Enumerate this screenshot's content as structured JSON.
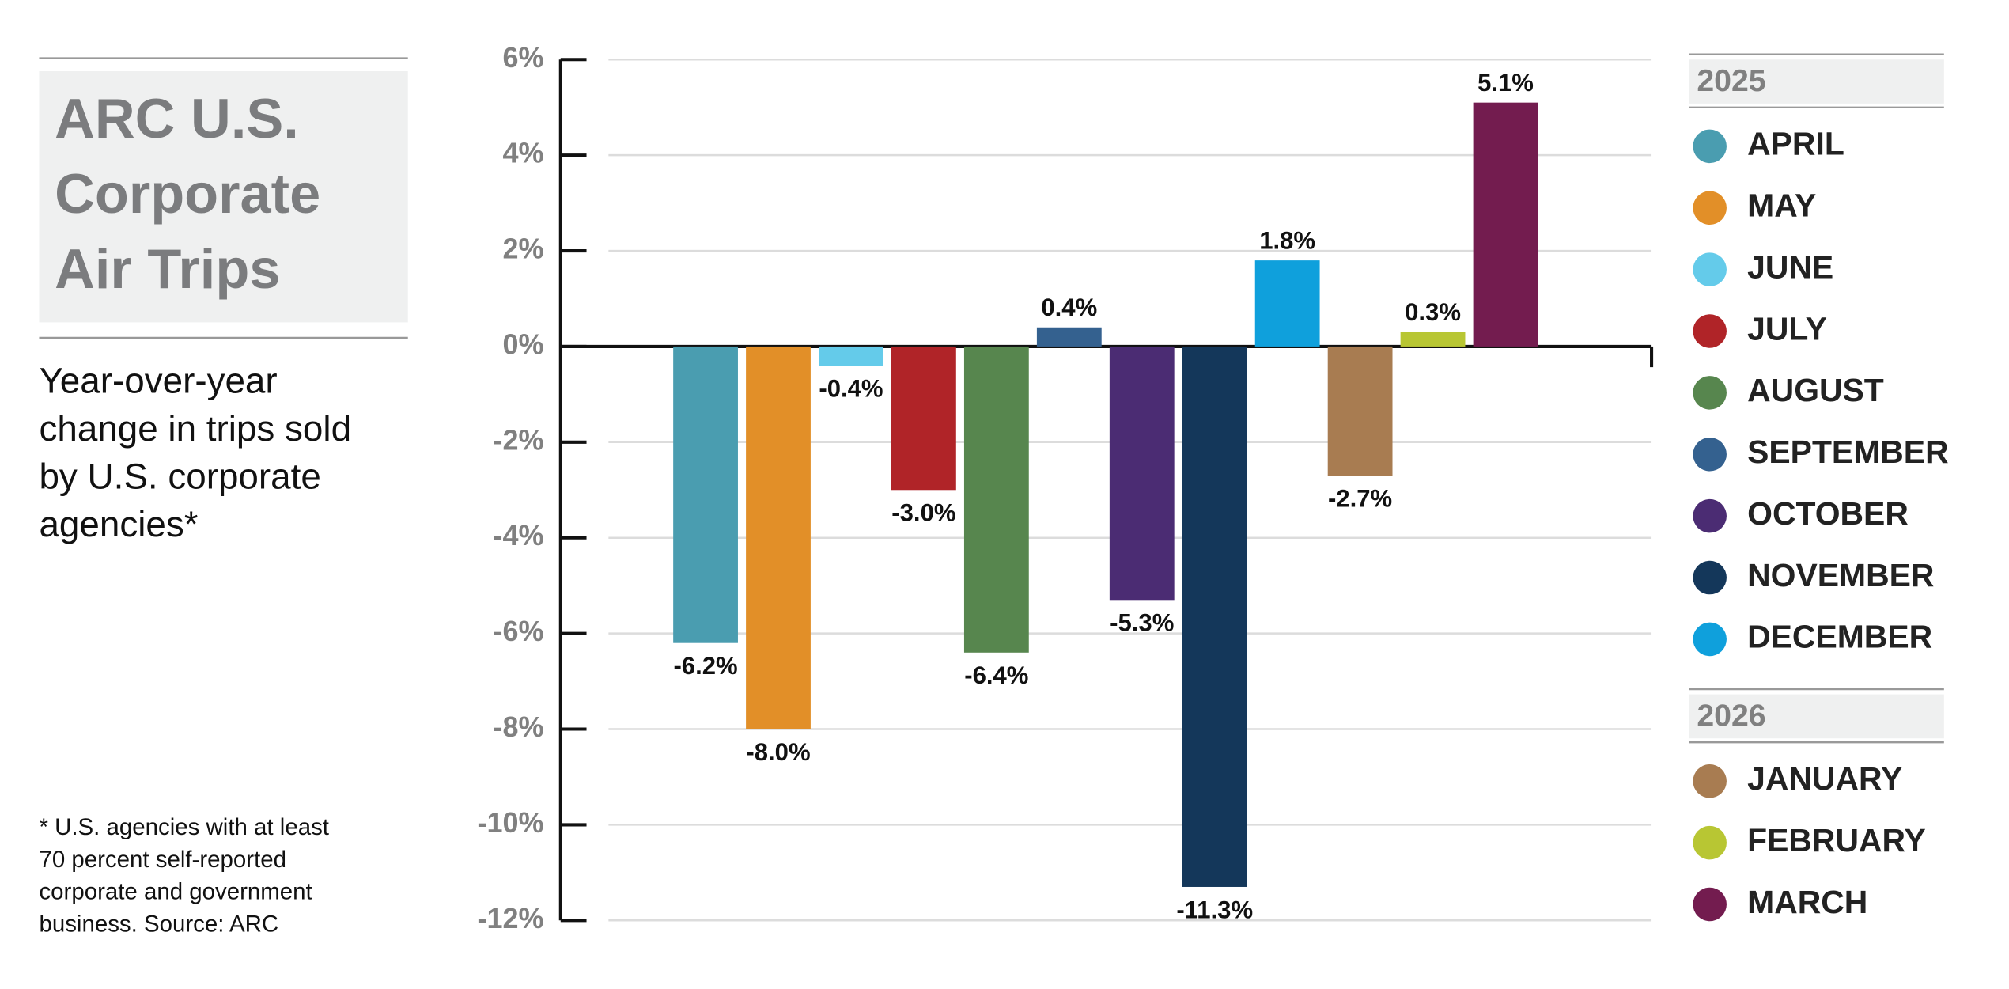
{
  "chart_data": {
    "type": "bar",
    "title_lines": [
      "ARC U.S.",
      "Corporate",
      "Air Trips"
    ],
    "subtitle_lines": [
      "Year-over-year",
      "change in trips sold",
      "by U.S. corporate",
      "agencies*"
    ],
    "footnote_lines": [
      "* U.S. agencies with at least",
      "70 percent self-reported",
      "corporate and government",
      "business. Source: ARC"
    ],
    "ylim": [
      -12,
      6
    ],
    "yticks": [
      {
        "value": 6,
        "label": "6%"
      },
      {
        "value": 4,
        "label": "4%"
      },
      {
        "value": 2,
        "label": "2%"
      },
      {
        "value": 0,
        "label": "0%"
      },
      {
        "value": -2,
        "label": "-2%"
      },
      {
        "value": -4,
        "label": "-4%"
      },
      {
        "value": -6,
        "label": "-6%"
      },
      {
        "value": -8,
        "label": "-8%"
      },
      {
        "value": -10,
        "label": "-10%"
      },
      {
        "value": -12,
        "label": "-12%"
      }
    ],
    "grid": true,
    "groups": [
      {
        "title": "2025",
        "series": [
          {
            "name": "APRIL",
            "color": "#4a9db0",
            "values": [
              -6.2
            ],
            "value_labels": [
              "-6.2%"
            ]
          },
          {
            "name": "MAY",
            "color": "#e28f28",
            "values": [
              -8.0
            ],
            "value_labels": [
              "-8.0%"
            ]
          },
          {
            "name": "JUNE",
            "color": "#64cbea",
            "values": [
              -0.4
            ],
            "value_labels": [
              "-0.4%"
            ]
          },
          {
            "name": "JULY",
            "color": "#b02428",
            "values": [
              -3.0
            ],
            "value_labels": [
              "-3.0%"
            ]
          },
          {
            "name": "AUGUST",
            "color": "#57864e",
            "values": [
              -6.4
            ],
            "value_labels": [
              "-6.4%"
            ]
          },
          {
            "name": "SEPTEMBER",
            "color": "#34618f",
            "values": [
              0.4
            ],
            "value_labels": [
              "0.4%"
            ]
          },
          {
            "name": "OCTOBER",
            "color": "#4b2c73",
            "values": [
              -5.3
            ],
            "value_labels": [
              "-5.3%"
            ]
          },
          {
            "name": "NOVEMBER",
            "color": "#14375a",
            "values": [
              -11.3
            ],
            "value_labels": [
              "-11.3%"
            ]
          },
          {
            "name": "DECEMBER",
            "color": "#0fa0dc",
            "values": [
              1.8
            ],
            "value_labels": [
              "1.8%"
            ]
          }
        ]
      },
      {
        "title": "2026",
        "series": [
          {
            "name": "JANUARY",
            "color": "#a87c51",
            "values": [
              -2.7
            ],
            "value_labels": [
              "-2.7%"
            ]
          },
          {
            "name": "FEBRUARY",
            "color": "#b8c633",
            "values": [
              0.3
            ],
            "value_labels": [
              "0.3%"
            ]
          },
          {
            "name": "MARCH",
            "color": "#731c4f",
            "values": [
              5.1
            ],
            "value_labels": [
              "5.1%"
            ]
          }
        ]
      }
    ]
  }
}
